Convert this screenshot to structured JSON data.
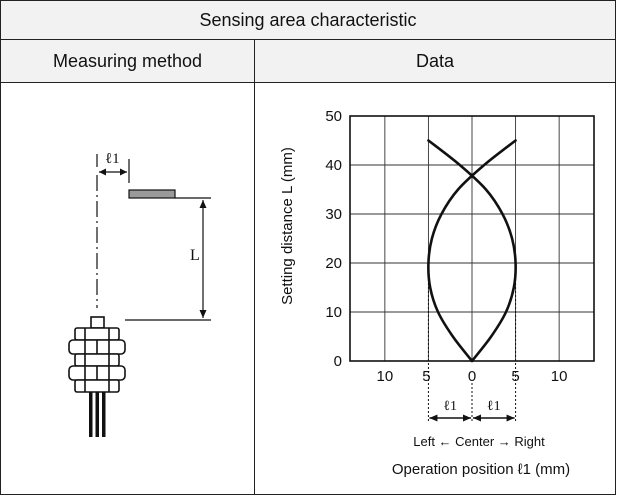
{
  "table": {
    "title": "Sensing area characteristic",
    "col_left": "Measuring method",
    "col_right": "Data"
  },
  "diagram": {
    "offset_label": "ℓ1",
    "distance_label": "L"
  },
  "chart_data": {
    "type": "line",
    "title": "",
    "ylabel": "Setting distance L (mm)",
    "xlabel": "Operation position ℓ1 (mm)",
    "direction_label": "Left ← Center → Right",
    "xlim": [
      -14,
      14
    ],
    "ylim": [
      0,
      50
    ],
    "x_ticks": [
      -10,
      -5,
      0,
      5,
      10
    ],
    "x_tick_labels": [
      "10",
      "5",
      "0",
      "5",
      "10"
    ],
    "y_ticks": [
      0,
      10,
      20,
      30,
      40,
      50
    ],
    "y_tick_labels": [
      "0",
      "10",
      "20",
      "30",
      "40",
      "50"
    ],
    "grid": true,
    "series": [
      {
        "x": [
          0,
          -2.2,
          -3.9,
          -4.8,
          -5.0,
          -4.6,
          -3.5,
          -1.6,
          1.4,
          5.0
        ],
        "y": [
          0,
          5,
          10,
          15,
          20,
          25,
          30,
          35,
          40,
          45
        ]
      },
      {
        "x": [
          0,
          2.2,
          3.9,
          4.8,
          5.0,
          4.6,
          3.5,
          1.6,
          -1.4,
          -5.0
        ],
        "y": [
          0,
          5,
          10,
          15,
          20,
          25,
          30,
          35,
          40,
          45
        ]
      }
    ],
    "annotations": {
      "left_marker": "ℓ1",
      "right_marker": "ℓ1"
    }
  }
}
